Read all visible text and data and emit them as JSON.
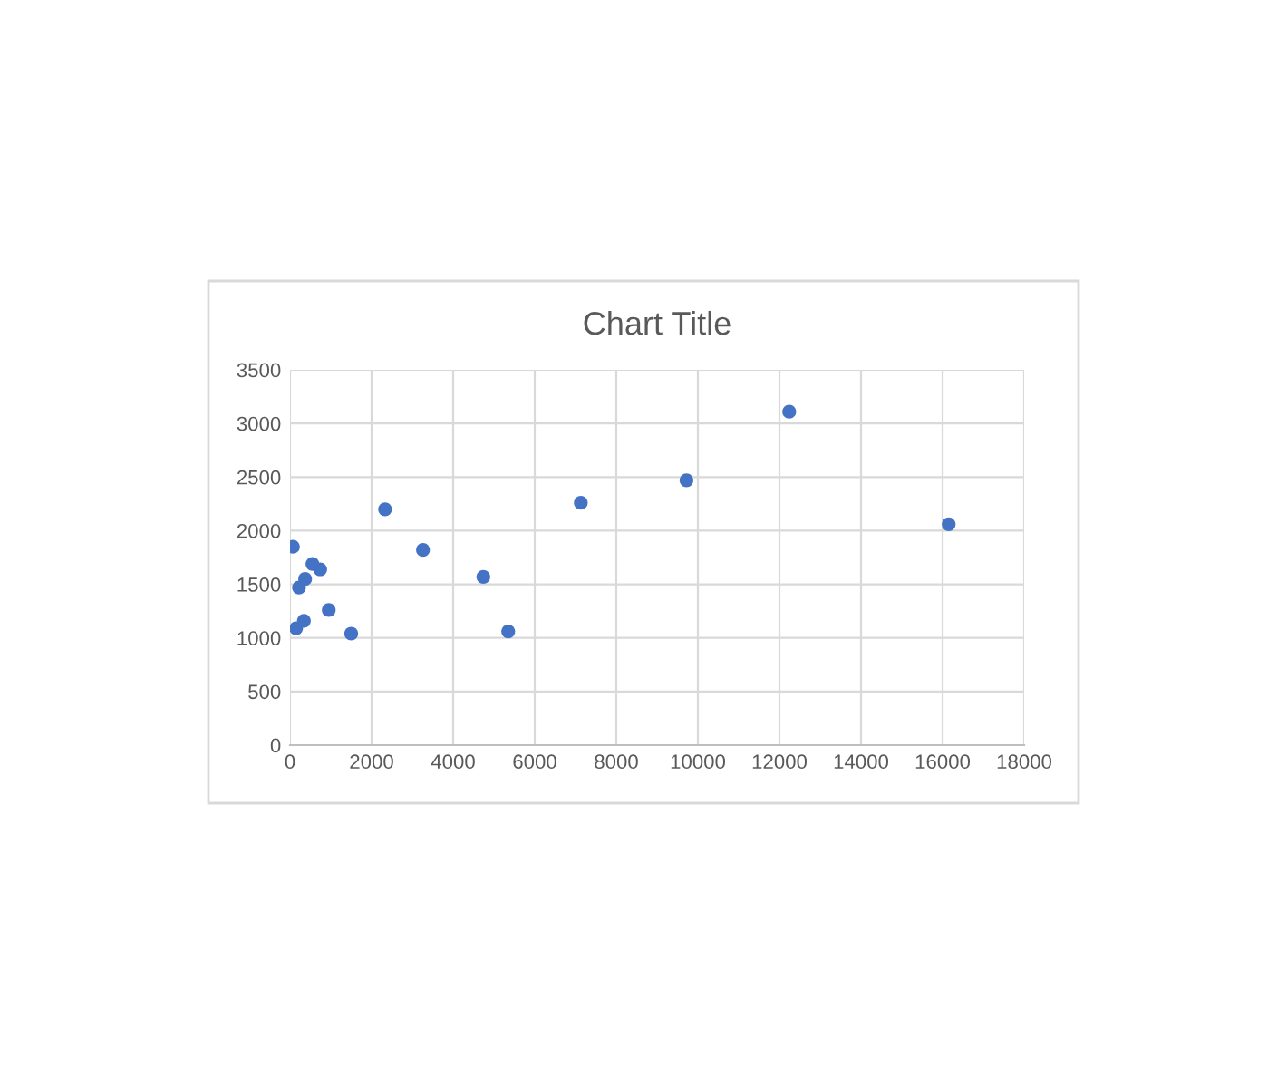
{
  "chart_data": {
    "type": "scatter",
    "title": "Chart Title",
    "x": [
      70,
      150,
      220,
      340,
      370,
      550,
      740,
      950,
      1500,
      2330,
      3260,
      4740,
      5350,
      7130,
      9720,
      12240,
      16150
    ],
    "values": [
      1850,
      1090,
      1470,
      1160,
      1550,
      1690,
      1640,
      1260,
      1040,
      2200,
      1820,
      1570,
      1060,
      2260,
      2470,
      3110,
      2060
    ],
    "color": "#4472c4",
    "marker": "circle",
    "xlim": [
      0,
      18000
    ],
    "xticks": [
      0,
      2000,
      4000,
      6000,
      8000,
      10000,
      12000,
      14000,
      16000,
      18000
    ],
    "ylim": [
      0,
      3500
    ],
    "yticks": [
      0,
      500,
      1000,
      1500,
      2000,
      2500,
      3000,
      3500
    ],
    "grid": true,
    "legend": false
  }
}
